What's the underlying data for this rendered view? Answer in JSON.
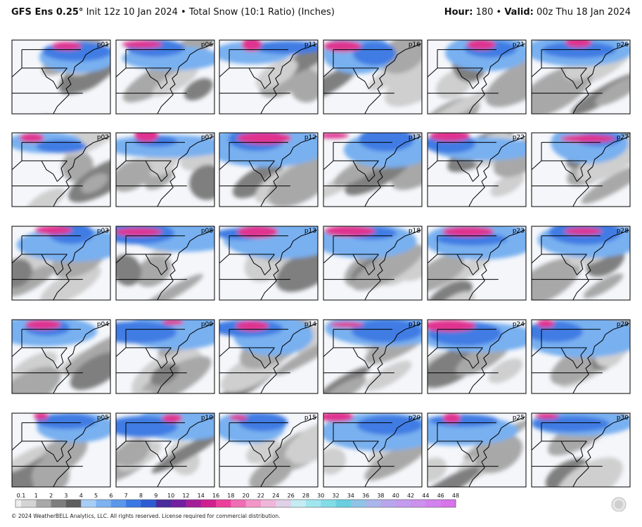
{
  "header": {
    "title_bold": "GFS Ens 0.25°",
    "title_rest": "Init 12z 10 Jan 2024 • Total Snow (10:1 Ratio) (Inches)",
    "hour_label": "Hour:",
    "hour_value": "180 •",
    "valid_label": "Valid:",
    "valid_value": "00z Thu 18 Jan 2024"
  },
  "panels": [
    [
      "p01",
      "p06",
      "p11",
      "p16",
      "p21",
      "p26"
    ],
    [
      "p02",
      "p07",
      "p12",
      "p17",
      "p22",
      "p27"
    ],
    [
      "p03",
      "p08",
      "p13",
      "p18",
      "p23",
      "p28"
    ],
    [
      "p04",
      "p09",
      "p14",
      "p19",
      "p24",
      "p29"
    ],
    [
      "p05",
      "p10",
      "p15",
      "p20",
      "p25",
      "p30"
    ]
  ],
  "colorbar": {
    "labels": [
      0.1,
      1,
      2,
      3,
      4,
      5,
      6,
      7,
      8,
      9,
      10,
      12,
      14,
      16,
      18,
      20,
      22,
      24,
      26,
      28,
      30,
      32,
      34,
      36,
      38,
      40,
      42,
      44,
      46,
      48
    ],
    "colors": [
      "#d4d4d4",
      "#a8a8a8",
      "#7e7e7e",
      "#5e5e5e",
      "#a6cdf6",
      "#7db3f1",
      "#5b96ea",
      "#3c78e2",
      "#2d5bd3",
      "#4a2c9c",
      "#7220a0",
      "#a31f9a",
      "#d0208f",
      "#ec3f9c",
      "#f06cb4",
      "#f295c8",
      "#efb6d9",
      "#e0d0e8",
      "#c4ecf2",
      "#a0e6ee",
      "#82dce8",
      "#6ad0e0",
      "#8fc4e6",
      "#aab6ea",
      "#b8a6ec",
      "#c49cee",
      "#cc90ee",
      "#d282ec",
      "#d874ea"
    ]
  },
  "footer": "© 2024 WeatherBELL Analytics, LLC. All rights reserved. License required for commercial distribution."
}
